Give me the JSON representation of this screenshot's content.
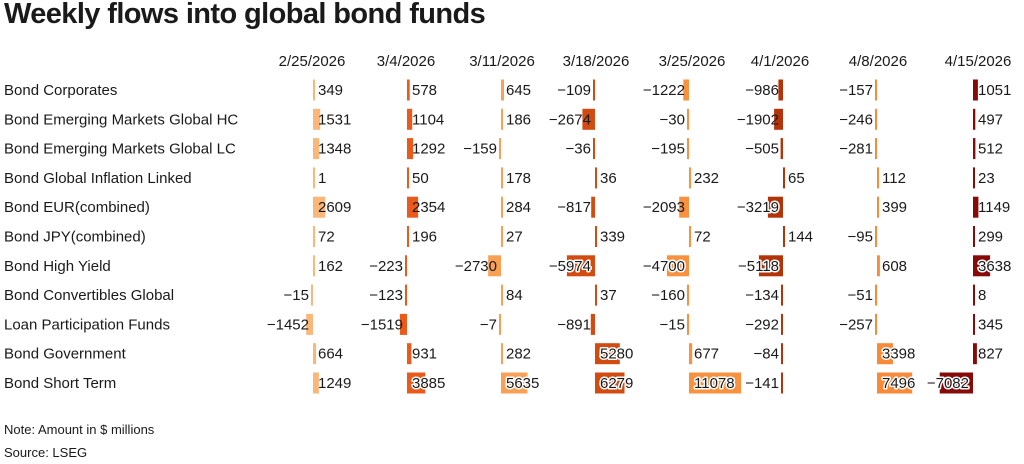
{
  "title": "Weekly flows into global bond funds",
  "note": "Note: Amount in $ millions",
  "source": "Source: LSEG",
  "chart_data": {
    "type": "table",
    "columns": [
      "2/25/2026",
      "3/4/2026",
      "3/11/2026",
      "3/18/2026",
      "3/25/2026",
      "4/1/2026",
      "4/8/2026",
      "4/15/2026"
    ],
    "rows": [
      {
        "name": "Bond Corporates",
        "values": [
          349,
          578,
          645,
          -109,
          -1222,
          -986,
          -157,
          1051
        ]
      },
      {
        "name": "Bond Emerging Markets Global HC",
        "values": [
          1531,
          1104,
          186,
          -2674,
          -30,
          -1902,
          -246,
          497
        ]
      },
      {
        "name": "Bond Emerging Markets Global LC",
        "values": [
          1348,
          1292,
          -159,
          -36,
          -195,
          -505,
          -281,
          512
        ]
      },
      {
        "name": "Bond Global Inflation Linked",
        "values": [
          1,
          50,
          178,
          36,
          232,
          65,
          112,
          23
        ]
      },
      {
        "name": "Bond EUR(combined)",
        "values": [
          2609,
          2354,
          284,
          -817,
          -2093,
          -3219,
          399,
          1149
        ]
      },
      {
        "name": "Bond JPY(combined)",
        "values": [
          72,
          196,
          27,
          339,
          72,
          144,
          -95,
          299
        ]
      },
      {
        "name": "Bond High Yield",
        "values": [
          162,
          -223,
          -2730,
          -5974,
          -4700,
          -5118,
          608,
          3638
        ]
      },
      {
        "name": "Bond Convertibles Global",
        "values": [
          -15,
          -123,
          84,
          37,
          -160,
          -134,
          -51,
          8
        ]
      },
      {
        "name": "Loan Participation Funds",
        "values": [
          -1452,
          -1519,
          -7,
          -891,
          -15,
          -292,
          -257,
          345
        ]
      },
      {
        "name": "Bond Government",
        "values": [
          664,
          931,
          282,
          5280,
          677,
          -84,
          3398,
          827
        ]
      },
      {
        "name": "Bond Short Term",
        "values": [
          1249,
          3885,
          5635,
          6279,
          11078,
          -141,
          7496,
          -7082
        ]
      }
    ],
    "colors": [
      "#f9b77a",
      "#ea5b1b",
      "#f9a055",
      "#d24b10",
      "#f9923f",
      "#b33408",
      "#f88a3a",
      "#880a08"
    ]
  }
}
